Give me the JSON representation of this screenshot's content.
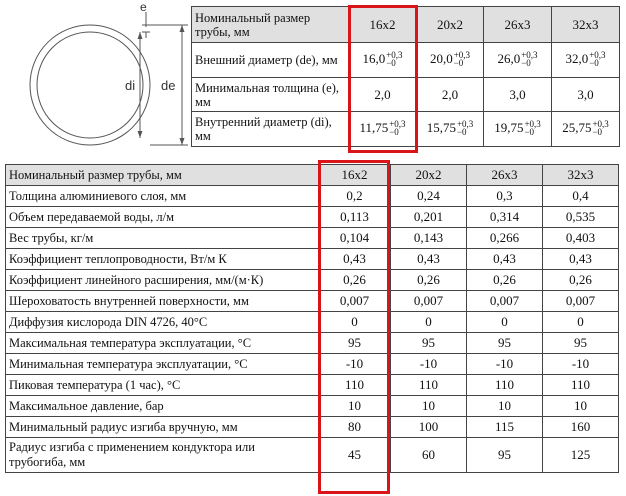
{
  "diagram": {
    "label_e": "e",
    "label_di": "di",
    "label_de": "de"
  },
  "top_table": {
    "header_label": "Номинальный размер трубы, мм",
    "sizes": [
      "16x2",
      "20x2",
      "26x3",
      "32x3"
    ],
    "rows": [
      {
        "label": "Внешний диаметр (de), мм",
        "cells": [
          {
            "v": "16,0",
            "sup": "+0,3",
            "sub": "−0"
          },
          {
            "v": "20,0",
            "sup": "+0,3",
            "sub": "−0"
          },
          {
            "v": "26,0",
            "sup": "+0,3",
            "sub": "−0"
          },
          {
            "v": "32,0",
            "sup": "+0,3",
            "sub": "−0"
          }
        ]
      },
      {
        "label": "Минимальная толщина (e), мм",
        "cells": [
          {
            "v": "2,0"
          },
          {
            "v": "2,0"
          },
          {
            "v": "3,0"
          },
          {
            "v": "3,0"
          }
        ]
      },
      {
        "label": "Внутренний диаметр (di), мм",
        "cells": [
          {
            "v": "11,75",
            "sup": "+0,3",
            "sub": "−0"
          },
          {
            "v": "15,75",
            "sup": "+0,3",
            "sub": "−0"
          },
          {
            "v": "19,75",
            "sup": "+0,3",
            "sub": "−0"
          },
          {
            "v": "25,75",
            "sup": "+0,3",
            "sub": "−0"
          }
        ]
      }
    ]
  },
  "bottom_table": {
    "header_label": "Номинальный размер трубы, мм",
    "sizes": [
      "16x2",
      "20x2",
      "26x3",
      "32x3"
    ],
    "rows": [
      {
        "label": "Толщина алюминиевого слоя, мм",
        "values": [
          "0,2",
          "0,24",
          "0,3",
          "0,4"
        ]
      },
      {
        "label": "Объем передаваемой воды, л/м",
        "values": [
          "0,113",
          "0,201",
          "0,314",
          "0,535"
        ]
      },
      {
        "label": "Вес трубы, кг/м",
        "values": [
          "0,104",
          "0,143",
          "0,266",
          "0,403"
        ]
      },
      {
        "label": "Коэффициент теплопроводности, Вт/м К",
        "values": [
          "0,43",
          "0,43",
          "0,43",
          "0,43"
        ]
      },
      {
        "label": "Коэффициент линейного расширения, мм/(м·К)",
        "values": [
          "0,26",
          "0,26",
          "0,26",
          "0,26"
        ]
      },
      {
        "label": "Шероховатость внутренней поверхности, мм",
        "values": [
          "0,007",
          "0,007",
          "0,007",
          "0,007"
        ]
      },
      {
        "label": "Диффузия кислорода DIN 4726, 40°С",
        "values": [
          "0",
          "0",
          "0",
          "0"
        ]
      },
      {
        "label": "Максимальная температура эксплуатации, °С",
        "values": [
          "95",
          "95",
          "95",
          "95"
        ]
      },
      {
        "label": "Минимальная температура эксплуатации, °С",
        "values": [
          "-10",
          "-10",
          "-10",
          "-10"
        ]
      },
      {
        "label": "Пиковая температура (1 час), °С",
        "values": [
          "110",
          "110",
          "110",
          "110"
        ]
      },
      {
        "label": "Максимальное давление, бар",
        "values": [
          "10",
          "10",
          "10",
          "10"
        ]
      },
      {
        "label": "Минимальный радиус изгиба вручную, мм",
        "values": [
          "80",
          "100",
          "115",
          "160"
        ]
      },
      {
        "label": "Радиус изгиба с применением кондуктора или трубогиба, мм",
        "values": [
          "45",
          "60",
          "95",
          "125"
        ],
        "tall": true
      }
    ]
  },
  "colors": {
    "highlight": "#d9141b",
    "header_bg": "#e0e0e0"
  }
}
